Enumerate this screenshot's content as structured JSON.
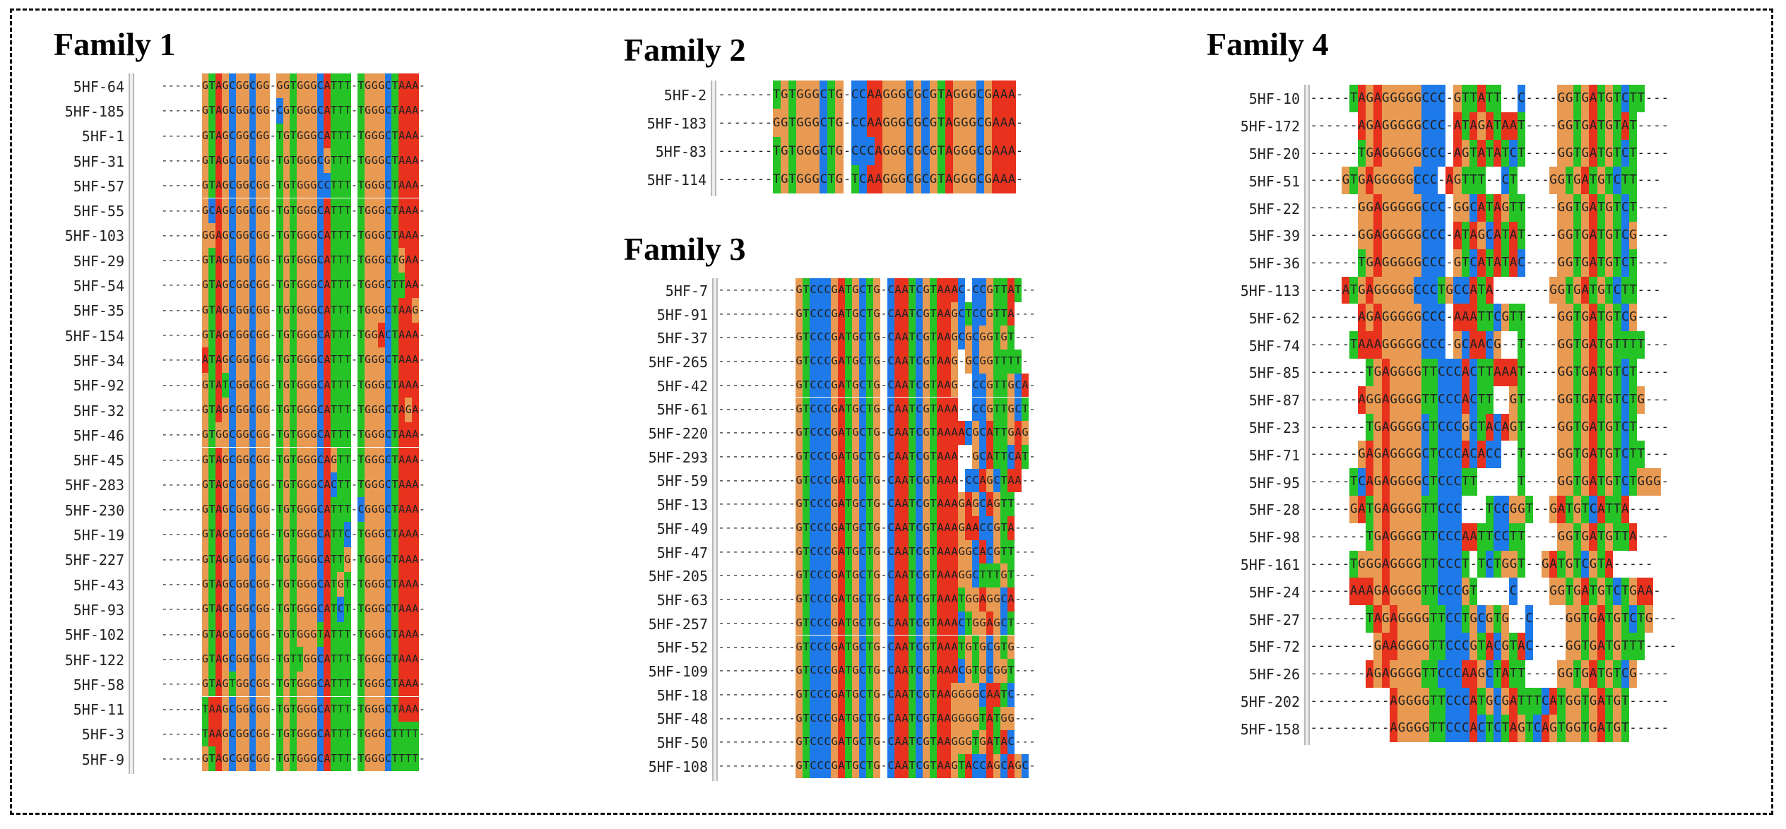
{
  "colors": {
    "A": "#e8321e",
    "C": "#1e7ae8",
    "G": "#e89a52",
    "T": "#26c326"
  },
  "families": [
    {
      "title": "Family 1",
      "rows": [
        {
          "name": "5HF-64",
          "seq": "------GTAGCGGCGG-GGTGGGCATTT-TGGGCTAAA-"
        },
        {
          "name": "5HF-185",
          "seq": "------GTAGCGGCGG-CGTGGGCATTT-TGGGCTAAA-"
        },
        {
          "name": "5HF-1",
          "seq": "------GTAGCGGCGG-TGTGGGCATTT-TGGGCTAAA-"
        },
        {
          "name": "5HF-31",
          "seq": "------GTAGCGGCGG-TGTGGGCGTTT-TGGGCTAAA-"
        },
        {
          "name": "5HF-57",
          "seq": "------GTAGCGGCGG-TGTGGGCCTTT-TGGGCTAAA-"
        },
        {
          "name": "5HF-55",
          "seq": "------GCAGCGGCGG-TGTGGGCATTT-TGGGCTAAA-"
        },
        {
          "name": "5HF-103",
          "seq": "------GGAGCGGCGG-TGTGGGCATTT-TGGGCTAAA-"
        },
        {
          "name": "5HF-29",
          "seq": "------GTAGCGGCGG-TGTGGGCATTT-TGGGCTGAA-"
        },
        {
          "name": "5HF-54",
          "seq": "------GTAGCGGCGG-TGTGGGCATTT-TGGGCTTAA-"
        },
        {
          "name": "5HF-35",
          "seq": "------GTAGCGGCGG-TGTGGGCATTT-TGGGCTAAG-"
        },
        {
          "name": "5HF-154",
          "seq": "------GTAGCGGCGG-TGTGGGCATTT-TGGACTAAA-"
        },
        {
          "name": "5HF-34",
          "seq": "------ATAGCGGCGG-TGTGGGCATTT-TGGGCTAAA-"
        },
        {
          "name": "5HF-92",
          "seq": "------GTATCGGCGG-TGTGGGCATTT-TGGGCTAAA-"
        },
        {
          "name": "5HF-32",
          "seq": "------GTAGCGGCGG-TGTGGGCATTT-TGGGCTAGA-"
        },
        {
          "name": "5HF-46",
          "seq": "------GTGGCGGCGG-TGTGGGCATTT-TGGGCTAAA-"
        },
        {
          "name": "5HF-45",
          "seq": "------GTAGCGGCGG-TGTGGGCAGTT-TGGGCTAAA-"
        },
        {
          "name": "5HF-283",
          "seq": "------GTAGCGGCGG-TGTGGGCACTT-TGGGCTAAA-"
        },
        {
          "name": "5HF-230",
          "seq": "------GTAGCGGCGG-TGTGGGCATTT-CGGGCTAAA-"
        },
        {
          "name": "5HF-19",
          "seq": "------GTAGCGGCGG-TGTGGGCATTC-TGGGCTAAA-"
        },
        {
          "name": "5HF-227",
          "seq": "------GTAGCGGCGG-TGTGGGCATTG-TGGGCTAAA-"
        },
        {
          "name": "5HF-43",
          "seq": "------GTAGCGGCGG-TGTGGGCATGT-TGGGCTAAA-"
        },
        {
          "name": "5HF-93",
          "seq": "------GTAGCGGCGG-TGTGGGCATCT-TGGGCTAAA-"
        },
        {
          "name": "5HF-102",
          "seq": "------GTAGCGGCGG-TGTGGGTATTT-TGGGCTAAA-"
        },
        {
          "name": "5HF-122",
          "seq": "------GTAGCGGCGG-TGTTGGCATTT-TGGGCTAAA-"
        },
        {
          "name": "5HF-58",
          "seq": "------GTAGTGGCGG-TGTGGGCATTT-TGGGCTAAA-"
        },
        {
          "name": "5HF-11",
          "seq": "------TAAGCGGCGG-TGTGGGCATTT-TGGGCTAAA-"
        },
        {
          "name": "5HF-3",
          "seq": "------TAAGCGGCGG-TGTGGGCATTT-TGGGCTTTT-"
        },
        {
          "name": "5HF-9",
          "seq": "------GTAGCGGCGG-TGTGGGCATTT-TGGGCTTTT-"
        }
      ]
    },
    {
      "title": "Family 2",
      "rows": [
        {
          "name": "5HF-2",
          "seq": "-------TGTGGGCTG-CCAAGGGCGCGTAGGGCGAAA-"
        },
        {
          "name": "5HF-183",
          "seq": "-------GGTGGGCTG-CCAAGGGCGCGTAGGGCGAAA-"
        },
        {
          "name": "5HF-83",
          "seq": "-------TGTGGGCTG-CCCAGGGCGCGTAGGGCGAAA-"
        },
        {
          "name": "5HF-114",
          "seq": "-------TGTGGGCTG-TCAAGGGCGCGTAGGGCGAAA-"
        }
      ]
    },
    {
      "title": "Family 3",
      "rows": [
        {
          "name": "5HF-7",
          "seq": "-----------GTCCCGATGCTG-CAATCGTAAAC-CCGTTAT--"
        },
        {
          "name": "5HF-91",
          "seq": "-----------GTCCCGATGCTG-CAATCGTAAGCTCCGTTA---"
        },
        {
          "name": "5HF-37",
          "seq": "-----------GTCCCGATGCTG-CAATCGTAAGCGCGGTGT---"
        },
        {
          "name": "5HF-265",
          "seq": "-----------GTCCCGATGCTG-CAATCGTAAG-GCGGTTTT-"
        },
        {
          "name": "5HF-42",
          "seq": "-----------GTCCCGATGCTG-CAATCGTAAG--CCGTTGCA-"
        },
        {
          "name": "5HF-61",
          "seq": "-----------GTCCCGATGCTG-CAATCGTAAA--CCGTTGCT-"
        },
        {
          "name": "5HF-220",
          "seq": "-----------GTCCCGATGCTG-CAATCGTAAAACGCATTGAG"
        },
        {
          "name": "5HF-293",
          "seq": "-----------GTCCCGATGCTG-CAATCGTAAA--GCATTCAT-"
        },
        {
          "name": "5HF-59",
          "seq": "-----------GTCCCGATGCTG-CAATCGTAAA-CCAGCTAA--"
        },
        {
          "name": "5HF-13",
          "seq": "-----------GTCCCGATGCTG-CAATCGTAAAGAGCAGTT---"
        },
        {
          "name": "5HF-49",
          "seq": "-----------GTCCCGATGCTG-CAATCGTAAAGAACCGTA---"
        },
        {
          "name": "5HF-47",
          "seq": "-----------GTCCCGATGCTG-CAATCGTAAAGGCACGTT---"
        },
        {
          "name": "5HF-205",
          "seq": "-----------GTCCCGATGCTG-CAATCGTAAAGGCTTTGT---"
        },
        {
          "name": "5HF-63",
          "seq": "-----------GTCCCGATGCTG-CAATCGTAAATGGAGGCA---"
        },
        {
          "name": "5HF-257",
          "seq": "-----------GTCCCGATGCTG-CAATCGTAAACTGGAGCT---"
        },
        {
          "name": "5HF-52",
          "seq": "-----------GTCCCGATGCTG-CAATCGTAAATGTGCGTG---"
        },
        {
          "name": "5HF-109",
          "seq": "-----------GTCCCGATGCTG-CAATCGTAAACGTGCGGT---"
        },
        {
          "name": "5HF-18",
          "seq": "-----------GTCCCGATGCTG-CAATCGTAAGGGGCAATC---"
        },
        {
          "name": "5HF-48",
          "seq": "-----------GTCCCGATGCTG-CAATCGTAAGGGGTATGG---"
        },
        {
          "name": "5HF-50",
          "seq": "-----------GTCCCGATGCTG-CAATCGTAAGGGTGATAC---"
        },
        {
          "name": "5HF-108",
          "seq": "-----------GTCCCGATGCTG-CAATCGTAAGTACCAGCAGC-"
        }
      ]
    },
    {
      "title": "Family 4",
      "rows": [
        {
          "name": "5HF-10",
          "seq": "-----TAGAGGGGGCCC-GTTATT--C----GGTGATGTCTT---"
        },
        {
          "name": "5HF-172",
          "seq": "------AGAGGGGGCCC-ATAGATAAT----GGTGATGTAT----"
        },
        {
          "name": "5HF-20",
          "seq": "------TGAGGGGGCCC-AGTATATCT----GGTGATGTCT----"
        },
        {
          "name": "5HF-51",
          "seq": "----GTGAGGGGGCCC-AGTTT--CT----GGTGATGTCTT---"
        },
        {
          "name": "5HF-22",
          "seq": "------GGAGGGGGCCC-GGCATAGTT----GGTGATGTCT----"
        },
        {
          "name": "5HF-39",
          "seq": "------GGAGGGGGCCC-ATAGCATAT----GGTGATGTCG----"
        },
        {
          "name": "5HF-36",
          "seq": "------TGAGGGGGCCC-GTCATATAC----GGTGATGTCT----"
        },
        {
          "name": "5HF-113",
          "seq": "----ATGAGGGGGCCCTGCCATA-------GGTGATGTCTT---"
        },
        {
          "name": "5HF-62",
          "seq": "------AGAGGGGGCCC-AAATTCGTT----GGTGATGTCG----"
        },
        {
          "name": "5HF-74",
          "seq": "-----TAAAGGGGGCCC-GCAACG--T----GGTGATGTTTT---"
        },
        {
          "name": "5HF-85",
          "seq": "-------TGAGGGGTTCCCACTTAAAT----GGTGATGTCT----"
        },
        {
          "name": "5HF-87",
          "seq": "------AGGAGGGGTTCCCACTT--GT----GGTGATGTCTG---"
        },
        {
          "name": "5HF-23",
          "seq": "-------TGAGGGGCTCCCGCTACAGT----GGTGATGTCT----"
        },
        {
          "name": "5HF-71",
          "seq": "------GAGAGGGGCTCCCACACC--T----GGTGATGTCTT---"
        },
        {
          "name": "5HF-95",
          "seq": "-----TCAGAGGGGCTCCCTT-----T----GGTGATGTCTGGG-"
        },
        {
          "name": "5HF-28",
          "seq": "-----GATGAGGGGTTCCC---TCCGGT--GATGTCATTA----"
        },
        {
          "name": "5HF-98",
          "seq": "-------TGAGGGGTTCCCAATTCCTT----GGTGATGTTA----"
        },
        {
          "name": "5HF-161",
          "seq": "-----TGGGAGGGGTTCCCT-TCTGGT--GATGTCGTA-----"
        },
        {
          "name": "5HF-24",
          "seq": "-----AAAGAGGGGTTCCCGT----C----GGTGATGTCTGAA-"
        },
        {
          "name": "5HF-27",
          "seq": "-------TAGAGGGGTTCCTGCGTG--C----GGTGATGTCTG---"
        },
        {
          "name": "5HF-72",
          "seq": "--------GAAGGGGTTCCCGTACGTAC----GGTGATGTTT----"
        },
        {
          "name": "5HF-26",
          "seq": "-------AGAGGGGTTCCCAAGCTATT----GGTGATGTCG----"
        },
        {
          "name": "5HF-202",
          "seq": "----------AGGGGTTCCCATGCGATTTCATGGTGATGT-----"
        },
        {
          "name": "5HF-158",
          "seq": "----------AGGGGTTCCCACTCTAGTCAGTGGTGATGT-----"
        }
      ]
    }
  ]
}
